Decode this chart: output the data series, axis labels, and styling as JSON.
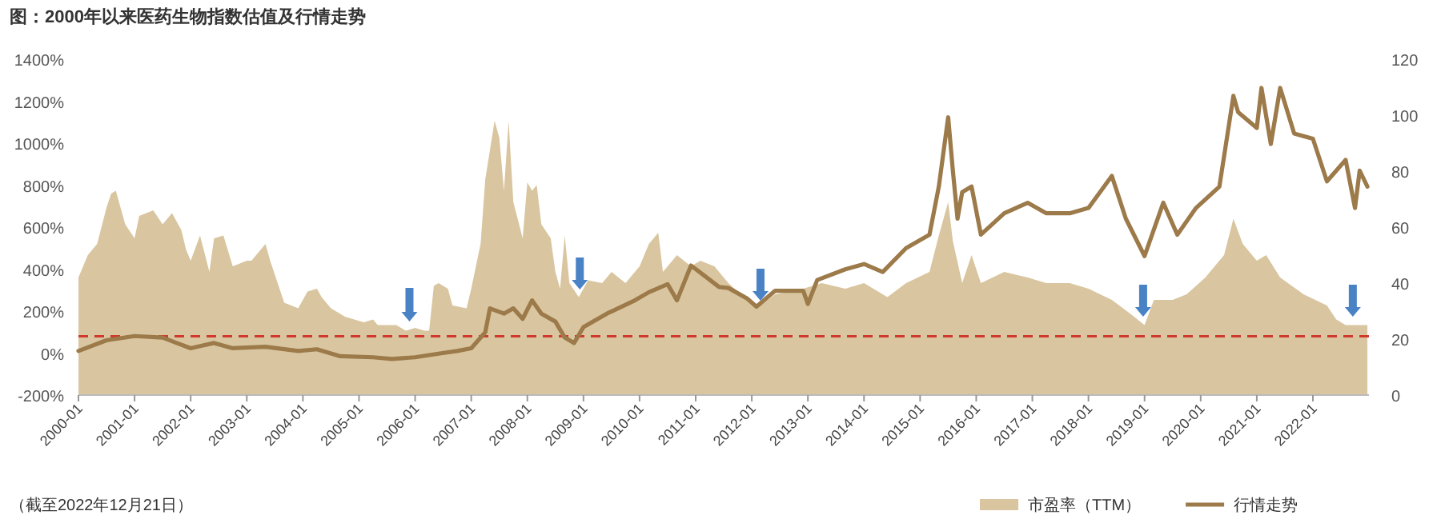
{
  "chart_data": {
    "type": "area",
    "title": "图：2000年以来医药生物指数估值及行情走势",
    "xlim": [
      "2000-01",
      "2022-12-31"
    ],
    "xticks": [
      "2000-01",
      "2001-01",
      "2002-01",
      "2003-01",
      "2004-01",
      "2005-01",
      "2006-01",
      "2007-01",
      "2008-01",
      "2009-01",
      "2010-01",
      "2011-01",
      "2012-01",
      "2013-01",
      "2014-01",
      "2015-01",
      "2016-01",
      "2017-01",
      "2018-01",
      "2019-01",
      "2020-01",
      "2021-01",
      "2022-01"
    ],
    "ylim": [
      -200,
      1400
    ],
    "yticks": [
      {
        "value": -200,
        "label": "-200%"
      },
      {
        "value": 0,
        "label": "0%"
      },
      {
        "value": 200,
        "label": "200%"
      },
      {
        "value": 400,
        "label": "400%"
      },
      {
        "value": 600,
        "label": "600%"
      },
      {
        "value": 800,
        "label": "800%"
      },
      {
        "value": 1000,
        "label": "1000%"
      },
      {
        "value": 1200,
        "label": "1200%"
      },
      {
        "value": 1400,
        "label": "1400%"
      }
    ],
    "y2lim": [
      0,
      120
    ],
    "y2ticks": [
      0,
      20,
      40,
      60,
      80,
      100,
      120
    ],
    "legend": "bottom",
    "series": [
      {
        "name": "市盈率（TTM）",
        "axis": "y2",
        "color": "#d9c6a0",
        "x": [
          "2000-01",
          "2000-03",
          "2000-05",
          "2000-07",
          "2000-08",
          "2000-09",
          "2000-11",
          "2001-01",
          "2001-02",
          "2001-05",
          "2001-07",
          "2001-09",
          "2001-11",
          "2001-12",
          "2002-01",
          "2002-03",
          "2002-05",
          "2002-06",
          "2002-08",
          "2002-10",
          "2003-01",
          "2003-02",
          "2003-05",
          "2003-06",
          "2003-09",
          "2003-12",
          "2004-02",
          "2004-04",
          "2004-05",
          "2004-07",
          "2004-10",
          "2005-02",
          "2005-04",
          "2005-05",
          "2005-09",
          "2005-11",
          "2006-01",
          "2006-03",
          "2006-04",
          "2006-05",
          "2006-06",
          "2006-08",
          "2006-09",
          "2006-12",
          "2007-01",
          "2007-03",
          "2007-04",
          "2007-06",
          "2007-07",
          "2007-08",
          "2007-09",
          "2007-10",
          "2007-12",
          "2008-01",
          "2008-02",
          "2008-03",
          "2008-04",
          "2008-06",
          "2008-07",
          "2008-08",
          "2008-09",
          "2008-10",
          "2008-12",
          "2009-02",
          "2009-05",
          "2009-07",
          "2009-10",
          "2010-01",
          "2010-03",
          "2010-05",
          "2010-06",
          "2010-09",
          "2010-12",
          "2011-02",
          "2011-05",
          "2011-08",
          "2011-12",
          "2012-02",
          "2012-06",
          "2012-12",
          "2013-04",
          "2013-09",
          "2014-01",
          "2014-06",
          "2014-10",
          "2015-03",
          "2015-05",
          "2015-07",
          "2015-08",
          "2015-10",
          "2015-12",
          "2016-02",
          "2016-07",
          "2016-12",
          "2017-04",
          "2017-09",
          "2018-01",
          "2018-06",
          "2018-10",
          "2019-01",
          "2019-03",
          "2019-07",
          "2019-10",
          "2020-02",
          "2020-06",
          "2020-08",
          "2020-10",
          "2021-01",
          "2021-03",
          "2021-06",
          "2021-11",
          "2022-04",
          "2022-06",
          "2022-08",
          "2022-12-21"
        ],
        "values": [
          42,
          50,
          54,
          67,
          72,
          73,
          61,
          56,
          64,
          66,
          61,
          65,
          59,
          52,
          48,
          57,
          44,
          56,
          57,
          46,
          48,
          48,
          54,
          48,
          33,
          31,
          37,
          38,
          35,
          31,
          28,
          26,
          27,
          25,
          25,
          23,
          24,
          23,
          23,
          39,
          40,
          38,
          32,
          31,
          38,
          54,
          77,
          98,
          92,
          73,
          98,
          69,
          56,
          76,
          73,
          75,
          61,
          56,
          44,
          38,
          57,
          40,
          35,
          41,
          40,
          44,
          40,
          46,
          54,
          58,
          44,
          50,
          46,
          48,
          46,
          40,
          34,
          31,
          36,
          38,
          40,
          38,
          40,
          35,
          40,
          44,
          57,
          69,
          55,
          40,
          50,
          40,
          44,
          42,
          40,
          40,
          38,
          34,
          29,
          25,
          34,
          34,
          36,
          42,
          50,
          63,
          54,
          48,
          50,
          42,
          36,
          32,
          27,
          25,
          25
        ]
      },
      {
        "name": "行情走势",
        "type": "line",
        "color": "#9c7a4a",
        "x": [
          "2000-01",
          "2000-07",
          "2001-01",
          "2001-07",
          "2001-10",
          "2002-01",
          "2002-06",
          "2002-10",
          "2003-05",
          "2003-12",
          "2004-04",
          "2004-09",
          "2005-04",
          "2005-08",
          "2006-01",
          "2006-06",
          "2006-10",
          "2007-01",
          "2007-04",
          "2007-05",
          "2007-08",
          "2007-10",
          "2007-12",
          "2008-02",
          "2008-04",
          "2008-07",
          "2008-09",
          "2008-11",
          "2009-01",
          "2009-06",
          "2009-12",
          "2010-03",
          "2010-07",
          "2010-09",
          "2010-12",
          "2011-03",
          "2011-06",
          "2011-08",
          "2011-12",
          "2012-02",
          "2012-06",
          "2012-12",
          "2013-01",
          "2013-03",
          "2013-09",
          "2014-01",
          "2014-05",
          "2014-10",
          "2015-03",
          "2015-05",
          "2015-07",
          "2015-08",
          "2015-09",
          "2015-10",
          "2015-12",
          "2016-02",
          "2016-07",
          "2016-12",
          "2017-04",
          "2017-09",
          "2018-01",
          "2018-06",
          "2018-09",
          "2019-01",
          "2019-05",
          "2019-08",
          "2019-12",
          "2020-05",
          "2020-08",
          "2020-09",
          "2021-01",
          "2021-02",
          "2021-04",
          "2021-06",
          "2021-09",
          "2022-01",
          "2022-04",
          "2022-08",
          "2022-10",
          "2022-11",
          "2022-12-21"
        ],
        "values": [
          10,
          61,
          81,
          74,
          48,
          23,
          48,
          23,
          30,
          10,
          18,
          -15,
          -20,
          -28,
          -20,
          -3,
          10,
          23,
          99,
          213,
          188,
          213,
          163,
          251,
          188,
          150,
          74,
          48,
          124,
          188,
          251,
          290,
          328,
          251,
          417,
          366,
          315,
          310,
          260,
          221,
          297,
          297,
          234,
          348,
          399,
          424,
          386,
          500,
          564,
          793,
          1123,
          869,
          640,
          767,
          793,
          564,
          666,
          716,
          666,
          666,
          691,
          844,
          640,
          462,
          716,
          564,
          691,
          793,
          1225,
          1148,
          1072,
          1263,
          996,
          1263,
          1046,
          1021,
          818,
          920,
          691,
          869,
          793
        ]
      }
    ],
    "ref_lines": [
      {
        "axis": "y",
        "value": 80,
        "color": "#d0392b",
        "line_style": "dashed"
      }
    ],
    "annotations": [
      "（截至2022年12月21日）"
    ]
  }
}
